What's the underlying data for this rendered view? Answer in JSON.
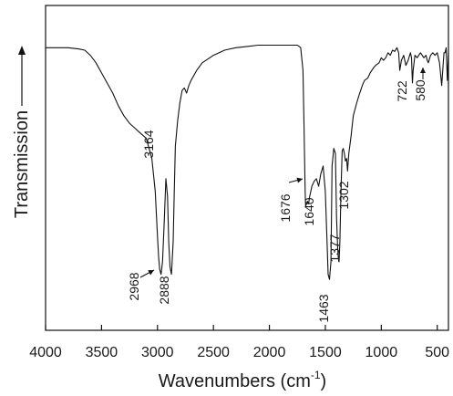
{
  "chart_data": {
    "type": "line",
    "title": "",
    "xlabel_main": "Wavenumbers (cm",
    "xlabel_sup": "-1",
    "xlabel_close": ")",
    "ylabel": "Transmission",
    "xlim": [
      4000,
      400
    ],
    "x_reversed": true,
    "y_ticks_shown": false,
    "legend": "none",
    "grid": false,
    "x_ticks": [
      {
        "value": 4000,
        "label": "4000"
      },
      {
        "value": 3500,
        "label": "3500"
      },
      {
        "value": 3000,
        "label": "3000"
      },
      {
        "value": 2500,
        "label": "2500"
      },
      {
        "value": 2000,
        "label": "2000"
      },
      {
        "value": 1500,
        "label": "1500"
      },
      {
        "value": 1000,
        "label": "1000"
      },
      {
        "value": 500,
        "label": "500"
      }
    ],
    "series": [
      {
        "line_color": "#111111",
        "x": [
          4000,
          3900,
          3800,
          3700,
          3650,
          3600,
          3550,
          3500,
          3450,
          3400,
          3350,
          3300,
          3250,
          3200,
          3164,
          3100,
          3050,
          3020,
          3000,
          2990,
          2980,
          2968,
          2955,
          2940,
          2925,
          2910,
          2900,
          2888,
          2875,
          2860,
          2850,
          2840,
          2820,
          2800,
          2780,
          2760,
          2740,
          2720,
          2700,
          2650,
          2600,
          2500,
          2400,
          2300,
          2200,
          2100,
          2000,
          1900,
          1800,
          1750,
          1720,
          1700,
          1690,
          1680,
          1676,
          1660,
          1650,
          1640,
          1620,
          1600,
          1580,
          1560,
          1540,
          1520,
          1500,
          1485,
          1475,
          1463,
          1450,
          1440,
          1425,
          1410,
          1400,
          1390,
          1385,
          1377,
          1370,
          1360,
          1350,
          1340,
          1330,
          1320,
          1310,
          1302,
          1290,
          1270,
          1250,
          1220,
          1200,
          1170,
          1150,
          1120,
          1100,
          1070,
          1050,
          1020,
          1000,
          980,
          960,
          940,
          920,
          900,
          880,
          860,
          845,
          835,
          820,
          800,
          780,
          760,
          740,
          730,
          722,
          715,
          700,
          680,
          650,
          620,
          600,
          590,
          580,
          560,
          540,
          520,
          500,
          480,
          460,
          440,
          430,
          420,
          410,
          400
        ],
        "y": [
          0.03,
          0.03,
          0.03,
          0.035,
          0.04,
          0.06,
          0.09,
          0.13,
          0.17,
          0.21,
          0.26,
          0.3,
          0.33,
          0.35,
          0.365,
          0.39,
          0.47,
          0.6,
          0.78,
          0.86,
          0.91,
          0.93,
          0.88,
          0.73,
          0.55,
          0.62,
          0.8,
          0.9,
          0.93,
          0.8,
          0.6,
          0.42,
          0.32,
          0.25,
          0.2,
          0.19,
          0.21,
          0.18,
          0.16,
          0.12,
          0.09,
          0.06,
          0.04,
          0.03,
          0.025,
          0.02,
          0.02,
          0.02,
          0.02,
          0.02,
          0.03,
          0.12,
          0.35,
          0.6,
          0.66,
          0.64,
          0.65,
          0.62,
          0.58,
          0.56,
          0.55,
          0.58,
          0.53,
          0.5,
          0.6,
          0.8,
          0.93,
          0.95,
          0.88,
          0.5,
          0.43,
          0.45,
          0.7,
          0.82,
          0.86,
          0.88,
          0.8,
          0.6,
          0.44,
          0.43,
          0.45,
          0.48,
          0.47,
          0.52,
          0.45,
          0.38,
          0.3,
          0.25,
          0.22,
          0.18,
          0.16,
          0.15,
          0.13,
          0.11,
          0.1,
          0.09,
          0.07,
          0.08,
          0.07,
          0.05,
          0.06,
          0.04,
          0.045,
          0.03,
          0.05,
          0.12,
          0.08,
          0.06,
          0.1,
          0.08,
          0.05,
          0.07,
          0.17,
          0.12,
          0.06,
          0.07,
          0.05,
          0.07,
          0.06,
          0.08,
          0.09,
          0.06,
          0.05,
          0.06,
          0.05,
          0.09,
          0.18,
          0.05,
          0.05,
          0.03,
          0.16,
          0.05
        ]
      }
    ],
    "annotations": [
      {
        "label": "3164",
        "x": 3164,
        "arrow": false
      },
      {
        "label": "2968",
        "x": 2968,
        "arrow": true
      },
      {
        "label": "2888",
        "x": 2888,
        "arrow": false
      },
      {
        "label": "1676",
        "x": 1676,
        "arrow": true
      },
      {
        "label": "1640",
        "x": 1640,
        "arrow": false
      },
      {
        "label": "1463",
        "x": 1463,
        "arrow": false
      },
      {
        "label": "1377",
        "x": 1377,
        "arrow": false
      },
      {
        "label": "1302",
        "x": 1302,
        "arrow": false
      },
      {
        "label": "722",
        "x": 722,
        "arrow": false
      },
      {
        "label": "580",
        "x": 580,
        "arrow": true
      }
    ]
  }
}
